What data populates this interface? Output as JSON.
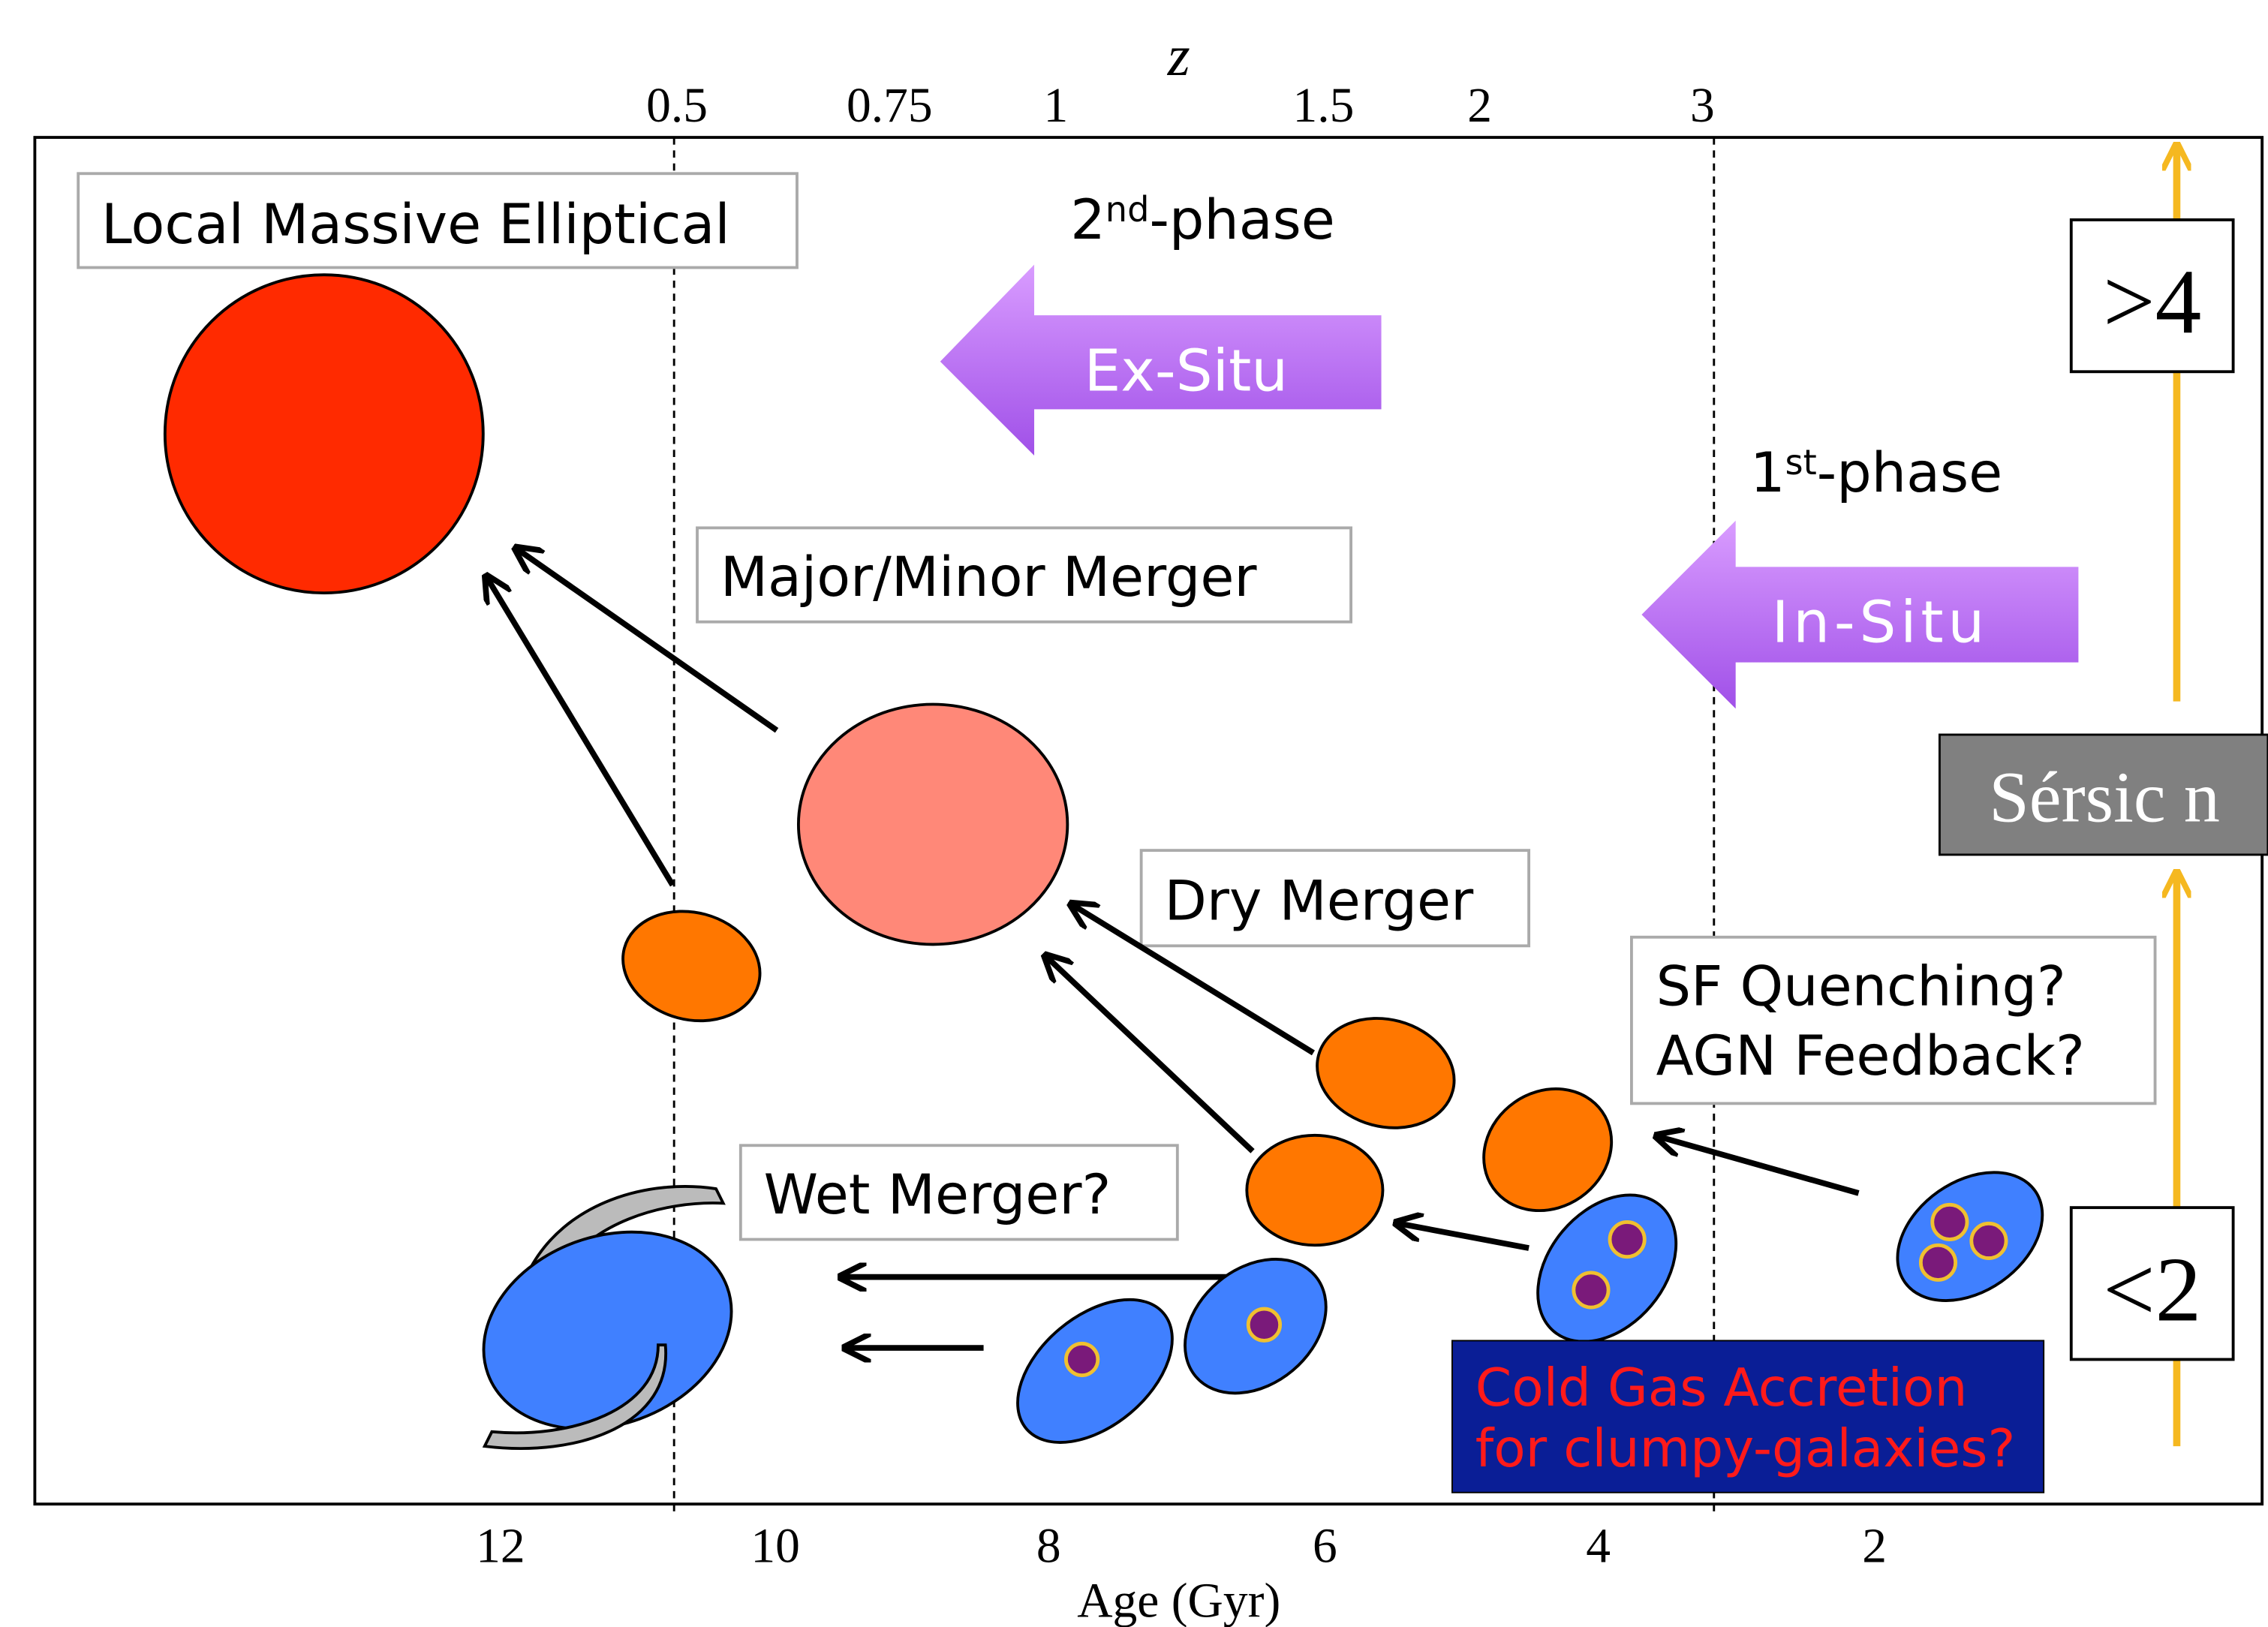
{
  "top_axis": {
    "label": "z",
    "ticks": [
      "0.5",
      "0.75",
      "1",
      "1.5",
      "2",
      "3"
    ]
  },
  "bottom_axis": {
    "label": "Age (Gyr)",
    "ticks": [
      "12",
      "10",
      "8",
      "6",
      "4",
      "2"
    ]
  },
  "labels": {
    "local_elliptical": "Local Massive Elliptical",
    "second_phase": {
      "number": "2",
      "suffix": "nd",
      "text": "-phase"
    },
    "ex_situ": "Ex-Situ",
    "first_phase": {
      "number": "1",
      "suffix": "st",
      "text": "-phase"
    },
    "in_situ": "In-Situ",
    "major_minor_merger": "Major/Minor Merger",
    "dry_merger": "Dry Merger",
    "quenching": [
      "SF Quenching?",
      "AGN Feedback?"
    ],
    "wet_merger": "Wet Merger?",
    "cold_gas": [
      "Cold Gas Accretion",
      "for clumpy-galaxies?"
    ],
    "sersic_high": ">4",
    "sersic": "Sérsic n",
    "sersic_low": "<2"
  }
}
